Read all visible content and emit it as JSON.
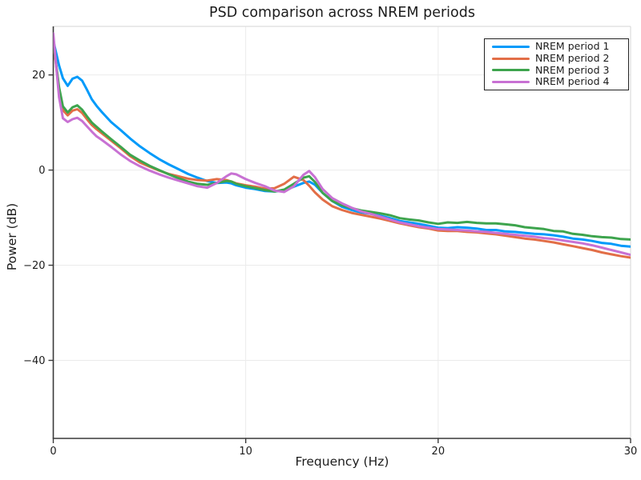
{
  "title": "PSD comparison across NREM periods",
  "chart_data": {
    "type": "line",
    "title": "PSD comparison across NREM periods",
    "xlabel": "Frequency (Hz)",
    "ylabel": "Power (dB)",
    "xlim": [
      0,
      30
    ],
    "ylim": [
      -56.4,
      30.2
    ],
    "xticks": [
      0,
      10,
      20,
      30
    ],
    "xtick_labels": [
      "0",
      "10",
      "20",
      "30"
    ],
    "yticks": [
      20,
      0,
      -20,
      -40
    ],
    "ytick_labels": [
      "20",
      "0",
      "−20",
      "−40"
    ],
    "grid": true,
    "legend_position": "top-right",
    "background": "#ffffff",
    "grid_color": "#ebebeb",
    "spine_color": "#3a3a3a",
    "frame_color": "#d6d6d6",
    "x": [
      0,
      0.3,
      0.5,
      0.75,
      1,
      1.25,
      1.5,
      1.75,
      2,
      2.25,
      2.5,
      3,
      3.5,
      4,
      4.5,
      5,
      5.5,
      6,
      6.5,
      7,
      7.5,
      8,
      8.5,
      9,
      9.25,
      9.5,
      10,
      10.5,
      11,
      11.5,
      12,
      12.5,
      13,
      13.3,
      13.6,
      14,
      14.5,
      15,
      15.5,
      16,
      16.5,
      17,
      17.5,
      18,
      18.5,
      19,
      19.5,
      20,
      20.5,
      21,
      21.5,
      22,
      22.5,
      23,
      23.5,
      24,
      24.5,
      25,
      25.5,
      26,
      26.5,
      27,
      27.5,
      28,
      28.5,
      29,
      29.5,
      30
    ],
    "series": [
      {
        "name": "NREM period 1",
        "color": "#009AFA",
        "values": [
          27.2,
          22.0,
          19.3,
          17.7,
          19.2,
          19.6,
          18.8,
          16.9,
          14.9,
          13.5,
          12.3,
          10.1,
          8.4,
          6.6,
          5.0,
          3.6,
          2.3,
          1.2,
          0.2,
          -0.8,
          -1.6,
          -2.3,
          -2.7,
          -2.6,
          -2.8,
          -3.2,
          -3.7,
          -4.0,
          -4.4,
          -4.5,
          -4.2,
          -3.5,
          -2.7,
          -2.4,
          -3.1,
          -4.8,
          -6.5,
          -7.7,
          -8.4,
          -8.9,
          -9.2,
          -9.6,
          -10.1,
          -10.7,
          -11.0,
          -11.3,
          -11.7,
          -12.1,
          -12.2,
          -12.0,
          -12.1,
          -12.3,
          -12.6,
          -12.6,
          -12.9,
          -13.0,
          -13.2,
          -13.4,
          -13.5,
          -13.7,
          -14.0,
          -14.4,
          -14.6,
          -14.9,
          -15.3,
          -15.5,
          -15.9,
          -16.1
        ]
      },
      {
        "name": "NREM period 2",
        "color": "#E26E47",
        "values": [
          27.0,
          16.8,
          12.6,
          11.5,
          12.5,
          12.8,
          12.0,
          10.7,
          9.5,
          8.6,
          7.8,
          6.2,
          4.6,
          2.9,
          1.6,
          0.7,
          -0.1,
          -0.8,
          -1.3,
          -1.8,
          -2.1,
          -2.2,
          -1.9,
          -2.1,
          -2.4,
          -2.8,
          -3.2,
          -3.5,
          -3.9,
          -3.8,
          -2.9,
          -1.4,
          -2.1,
          -3.3,
          -4.7,
          -6.2,
          -7.6,
          -8.4,
          -9.0,
          -9.4,
          -9.8,
          -10.2,
          -10.7,
          -11.2,
          -11.6,
          -12.0,
          -12.3,
          -12.7,
          -12.8,
          -12.8,
          -13.0,
          -13.1,
          -13.3,
          -13.5,
          -13.8,
          -14.1,
          -14.4,
          -14.6,
          -14.9,
          -15.2,
          -15.6,
          -16.0,
          -16.4,
          -16.8,
          -17.3,
          -17.7,
          -18.1,
          -18.4
        ]
      },
      {
        "name": "NREM period 3",
        "color": "#3DA44D",
        "values": [
          27.1,
          17.4,
          13.4,
          12.1,
          13.2,
          13.6,
          12.7,
          11.3,
          10.0,
          9.1,
          8.2,
          6.5,
          4.9,
          3.2,
          2.0,
          0.9,
          0.0,
          -0.9,
          -1.7,
          -2.4,
          -2.9,
          -3.1,
          -2.7,
          -2.3,
          -2.4,
          -2.9,
          -3.4,
          -3.8,
          -4.2,
          -4.5,
          -4.1,
          -2.9,
          -1.6,
          -1.3,
          -2.5,
          -4.8,
          -6.5,
          -7.4,
          -8.0,
          -8.5,
          -8.8,
          -9.1,
          -9.5,
          -10.1,
          -10.4,
          -10.6,
          -11.0,
          -11.3,
          -11.0,
          -11.1,
          -10.9,
          -11.1,
          -11.2,
          -11.2,
          -11.4,
          -11.6,
          -12.0,
          -12.2,
          -12.4,
          -12.8,
          -12.9,
          -13.4,
          -13.6,
          -13.9,
          -14.1,
          -14.2,
          -14.5,
          -14.6
        ]
      },
      {
        "name": "NREM period 4",
        "color": "#C871D3",
        "values": [
          28.7,
          15.3,
          10.9,
          10.1,
          10.7,
          11.0,
          10.3,
          9.2,
          8.1,
          7.1,
          6.4,
          4.9,
          3.3,
          1.9,
          0.8,
          -0.1,
          -0.9,
          -1.6,
          -2.2,
          -2.8,
          -3.4,
          -3.7,
          -2.7,
          -1.3,
          -0.7,
          -0.9,
          -1.9,
          -2.7,
          -3.4,
          -4.3,
          -4.6,
          -3.4,
          -1.0,
          -0.2,
          -1.5,
          -4.0,
          -5.9,
          -7.0,
          -7.9,
          -8.7,
          -9.2,
          -9.8,
          -10.4,
          -11.0,
          -11.4,
          -11.8,
          -12.1,
          -12.4,
          -12.5,
          -12.6,
          -12.7,
          -12.9,
          -13.0,
          -13.2,
          -13.4,
          -13.6,
          -13.8,
          -14.0,
          -14.3,
          -14.5,
          -14.8,
          -15.1,
          -15.4,
          -15.8,
          -16.3,
          -16.8,
          -17.3,
          -17.8
        ]
      }
    ]
  }
}
